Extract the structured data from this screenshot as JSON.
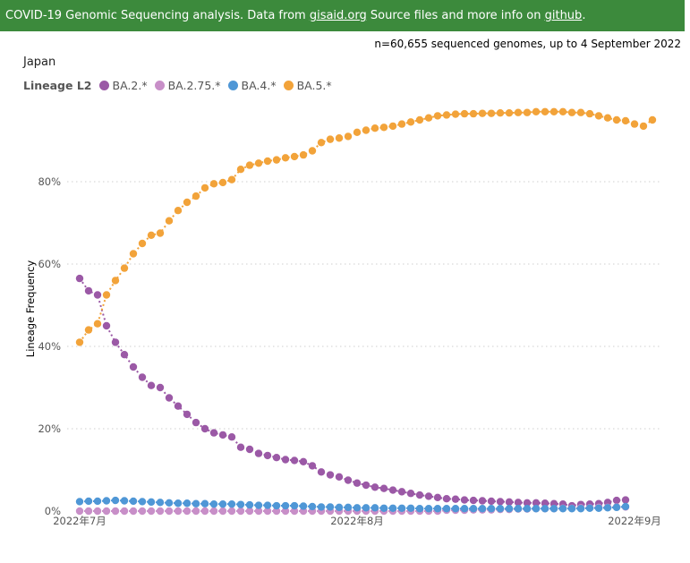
{
  "banner": {
    "text_before": "COVID-19 Genomic Sequencing analysis. Data from ",
    "link1": "gisaid.org",
    "text_middle": " Source files and more info on ",
    "link2": "github",
    "text_after": "."
  },
  "summary": "n=60,655 sequenced genomes, up to 4 September 2022",
  "country": "Japan",
  "chart_data": {
    "type": "line",
    "title": "",
    "ylabel": "Lineage Frequency",
    "xlabel": "",
    "legend_title": "Lineage L2",
    "x_tick_labels": [
      "2022年7月",
      "2022年8月",
      "2022年9月"
    ],
    "y_tick_labels": [
      "0%",
      "20%",
      "40%",
      "60%",
      "80%"
    ],
    "y_ticks": [
      0,
      20,
      40,
      60,
      80
    ],
    "ylim": [
      0,
      100
    ],
    "x_unit": "day index starting 2022-07-01",
    "xlim": [
      0,
      65
    ],
    "grid": true,
    "series": [
      {
        "name": "BA.2.*",
        "color": "#9b59a6",
        "x": [
          0,
          1,
          2,
          3,
          4,
          5,
          6,
          7,
          8,
          9,
          10,
          11,
          12,
          13,
          14,
          15,
          16,
          17,
          18,
          19,
          20,
          21,
          22,
          23,
          24,
          25,
          26,
          27,
          28,
          29,
          30,
          31,
          32,
          33,
          34,
          35,
          36,
          37,
          38,
          39,
          40,
          41,
          42,
          43,
          44,
          45,
          46,
          47,
          48,
          49,
          50,
          51,
          52,
          53,
          54,
          55,
          56,
          57,
          58,
          59,
          60,
          61
        ],
        "values": [
          56.5,
          53.5,
          52.5,
          45,
          41,
          38,
          35,
          32.5,
          30.5,
          30,
          27.5,
          25.5,
          23.5,
          21.5,
          20,
          19,
          18.5,
          18,
          15.5,
          15,
          14,
          13.5,
          13,
          12.5,
          12.3,
          12,
          11,
          9.5,
          8.8,
          8.3,
          7.5,
          6.8,
          6.3,
          5.8,
          5.5,
          5.1,
          4.7,
          4.3,
          3.9,
          3.6,
          3.3,
          3.0,
          2.9,
          2.7,
          2.6,
          2.5,
          2.4,
          2.3,
          2.2,
          2.1,
          2.0,
          2.0,
          1.9,
          1.8,
          1.7,
          1.3,
          1.6,
          1.7,
          1.8,
          2.1,
          2.6,
          2.7
        ]
      },
      {
        "name": "BA.2.75.*",
        "color": "#c88fc8",
        "x": [
          0,
          1,
          2,
          3,
          4,
          5,
          6,
          7,
          8,
          9,
          10,
          11,
          12,
          13,
          14,
          15,
          16,
          17,
          18,
          19,
          20,
          21,
          22,
          23,
          24,
          25,
          26,
          27,
          28,
          29,
          30,
          31,
          32,
          33,
          34,
          35,
          36,
          37,
          38,
          39,
          40,
          41,
          42,
          43,
          44,
          45,
          46,
          47,
          48,
          49,
          50,
          51,
          52,
          53,
          54,
          55,
          56,
          57,
          58,
          59,
          60,
          61
        ],
        "values": [
          0,
          0,
          0,
          0,
          0,
          0,
          0,
          0,
          0,
          0,
          0,
          0,
          0,
          0,
          0,
          0,
          0,
          0,
          0,
          0,
          0,
          0,
          0,
          0,
          0,
          0,
          0,
          0,
          0,
          0,
          0,
          0,
          0,
          0,
          0,
          0,
          0,
          0,
          0,
          0,
          0,
          0.2,
          0.2,
          0.2,
          0.3,
          0.3,
          0.3,
          0.4,
          0.4,
          0.5,
          0.5,
          0.6,
          0.6,
          0.6,
          0.7,
          0.7,
          0.8,
          0.8,
          0.9,
          0.9,
          1.0,
          1.0
        ]
      },
      {
        "name": "BA.4.*",
        "color": "#4f97d6",
        "x": [
          0,
          1,
          2,
          3,
          4,
          5,
          6,
          7,
          8,
          9,
          10,
          11,
          12,
          13,
          14,
          15,
          16,
          17,
          18,
          19,
          20,
          21,
          22,
          23,
          24,
          25,
          26,
          27,
          28,
          29,
          30,
          31,
          32,
          33,
          34,
          35,
          36,
          37,
          38,
          39,
          40,
          41,
          42,
          43,
          44,
          45,
          46,
          47,
          48,
          49,
          50,
          51,
          52,
          53,
          54,
          55,
          56,
          57,
          58,
          59,
          60,
          61
        ],
        "values": [
          2.3,
          2.4,
          2.4,
          2.5,
          2.6,
          2.5,
          2.4,
          2.3,
          2.2,
          2.1,
          2.0,
          1.9,
          1.9,
          1.8,
          1.8,
          1.7,
          1.7,
          1.7,
          1.6,
          1.5,
          1.4,
          1.4,
          1.3,
          1.3,
          1.3,
          1.2,
          1.1,
          1.0,
          1.0,
          0.9,
          0.9,
          0.8,
          0.8,
          0.8,
          0.7,
          0.7,
          0.7,
          0.7,
          0.6,
          0.6,
          0.6,
          0.6,
          0.6,
          0.6,
          0.6,
          0.6,
          0.6,
          0.6,
          0.6,
          0.6,
          0.6,
          0.6,
          0.6,
          0.6,
          0.6,
          0.6,
          0.6,
          0.7,
          0.7,
          0.8,
          0.9,
          1.1
        ]
      },
      {
        "name": "BA.5.*",
        "color": "#f2a33a",
        "x": [
          0,
          1,
          2,
          3,
          4,
          5,
          6,
          7,
          8,
          9,
          10,
          11,
          12,
          13,
          14,
          15,
          16,
          17,
          18,
          19,
          20,
          21,
          22,
          23,
          24,
          25,
          26,
          27,
          28,
          29,
          30,
          31,
          32,
          33,
          34,
          35,
          36,
          37,
          38,
          39,
          40,
          41,
          42,
          43,
          44,
          45,
          46,
          47,
          48,
          49,
          50,
          51,
          52,
          53,
          54,
          55,
          56,
          57,
          58,
          59,
          60,
          61,
          62,
          63,
          64
        ],
        "values": [
          41,
          44,
          45.5,
          52.5,
          56,
          59,
          62.5,
          65,
          67,
          67.5,
          70.5,
          73,
          75,
          76.5,
          78.5,
          79.5,
          79.8,
          80.5,
          83,
          84,
          84.5,
          85,
          85.3,
          85.8,
          86.1,
          86.5,
          87.5,
          89.5,
          90.3,
          90.6,
          91,
          92,
          92.5,
          93,
          93.2,
          93.5,
          94,
          94.5,
          95,
          95.5,
          96,
          96.2,
          96.4,
          96.5,
          96.5,
          96.6,
          96.6,
          96.7,
          96.7,
          96.8,
          96.8,
          97,
          97,
          97,
          97,
          96.8,
          96.8,
          96.5,
          96,
          95.5,
          95,
          94.8,
          94,
          93.5,
          95
        ]
      }
    ]
  }
}
